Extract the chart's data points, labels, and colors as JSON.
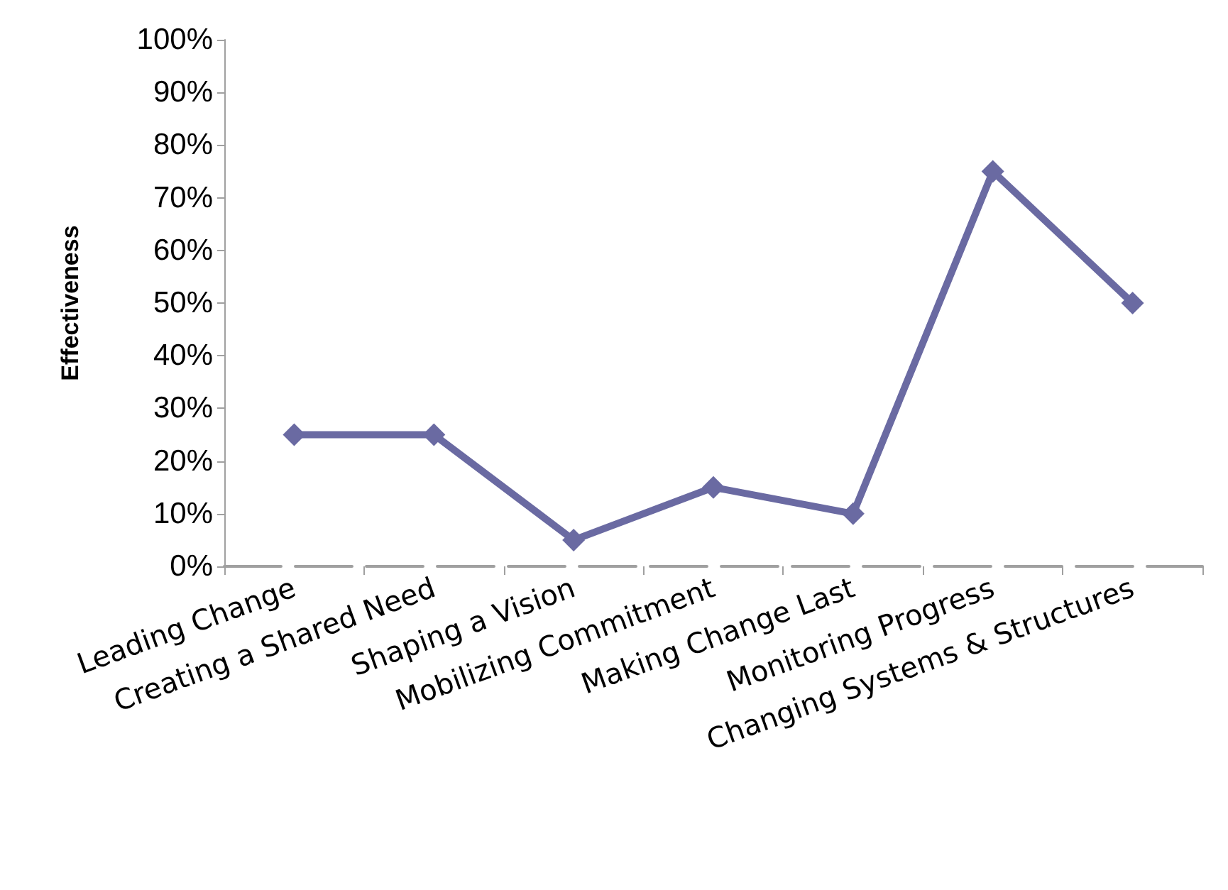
{
  "chart_data": {
    "type": "line",
    "ylabel": "Effectiveness",
    "categories": [
      "Leading Change",
      "Creating a Shared Need",
      "Shaping a Vision",
      "Mobilizing Commitment",
      "Making Change Last",
      "Monitoring Progress",
      "Changing Systems & Structures"
    ],
    "series": [
      {
        "color": "#6a6aa2",
        "values": [
          25,
          25,
          5,
          15,
          10,
          75,
          50
        ]
      }
    ],
    "ylim": [
      0,
      100
    ],
    "yticks": [
      {
        "value": 0,
        "label": "0%"
      },
      {
        "value": 10,
        "label": "10%"
      },
      {
        "value": 20,
        "label": "20%"
      },
      {
        "value": 30,
        "label": "30%"
      },
      {
        "value": 40,
        "label": "40%"
      },
      {
        "value": 50,
        "label": "50%"
      },
      {
        "value": 60,
        "label": "60%"
      },
      {
        "value": 70,
        "label": "70%"
      },
      {
        "value": 80,
        "label": "80%"
      },
      {
        "value": 90,
        "label": "90%"
      },
      {
        "value": 100,
        "label": "100%"
      }
    ],
    "grid": false,
    "marker": "diamond",
    "line_style": "solid"
  }
}
